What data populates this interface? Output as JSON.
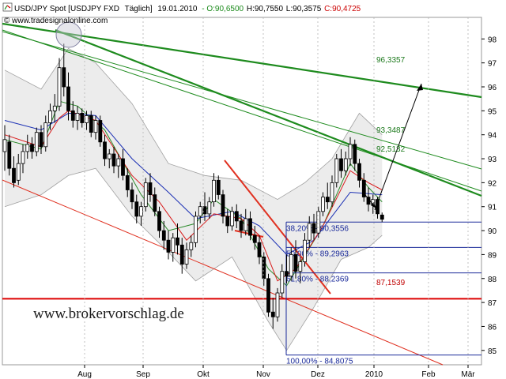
{
  "header": {
    "instrument": "USD/JPY Spot [USDJPY FXD",
    "period": "Täglich]",
    "date": "19.01.2010",
    "open": "- O:90,6500",
    "high": "H:90,7550",
    "low": "L:90,3575",
    "close": "C:90,4725",
    "source": "© www.tradesignalonline.com",
    "watermark": "www.brokervorschlag.de"
  },
  "colors": {
    "close": "#cc0000",
    "candle": "#000000",
    "ma_red": "#d81b1b",
    "ma_blue": "#1a2fb4",
    "ma_green": "#2a8a2a",
    "bands": "#a0a0a0",
    "band_fill": "#dcdcdc",
    "trend_green": "#1e8b1e",
    "channel_red": "#e03020",
    "fib": "#1a2a9a",
    "support": "#dd0000"
  },
  "chart_data": {
    "type": "candlestick",
    "x_tick_labels": [
      "Aug",
      "Sep",
      "Okt",
      "Nov",
      "Dez",
      "2010",
      "Feb",
      "Mär"
    ],
    "y_ticks": [
      85,
      86,
      87,
      88,
      89,
      90,
      91,
      92,
      93,
      94,
      95,
      96,
      97,
      98
    ],
    "ylim": [
      84.4,
      98.9
    ],
    "candles": [
      {
        "o": 93.3,
        "h": 94.4,
        "l": 92.5,
        "c": 93.8
      },
      {
        "o": 93.7,
        "h": 94.0,
        "l": 92.3,
        "c": 92.6
      },
      {
        "o": 92.6,
        "h": 93.1,
        "l": 91.8,
        "c": 92.0
      },
      {
        "o": 92.1,
        "h": 93.2,
        "l": 91.9,
        "c": 92.8
      },
      {
        "o": 92.8,
        "h": 93.6,
        "l": 92.4,
        "c": 93.3
      },
      {
        "o": 93.3,
        "h": 94.0,
        "l": 93.0,
        "c": 93.6
      },
      {
        "o": 93.6,
        "h": 93.9,
        "l": 93.0,
        "c": 93.3
      },
      {
        "o": 93.3,
        "h": 94.3,
        "l": 93.1,
        "c": 94.1
      },
      {
        "o": 94.1,
        "h": 94.4,
        "l": 93.2,
        "c": 93.5
      },
      {
        "o": 93.5,
        "h": 94.8,
        "l": 93.3,
        "c": 94.5
      },
      {
        "o": 94.5,
        "h": 95.3,
        "l": 94.2,
        "c": 95.0
      },
      {
        "o": 95.0,
        "h": 95.7,
        "l": 94.5,
        "c": 95.2
      },
      {
        "o": 95.2,
        "h": 97.2,
        "l": 95.0,
        "c": 96.8
      },
      {
        "o": 96.8,
        "h": 97.8,
        "l": 95.6,
        "c": 96.0
      },
      {
        "o": 96.0,
        "h": 96.6,
        "l": 94.6,
        "c": 95.0
      },
      {
        "o": 95.0,
        "h": 95.4,
        "l": 94.3,
        "c": 94.6
      },
      {
        "o": 94.6,
        "h": 95.2,
        "l": 94.2,
        "c": 94.9
      },
      {
        "o": 94.9,
        "h": 95.1,
        "l": 94.3,
        "c": 94.5
      },
      {
        "o": 94.5,
        "h": 95.0,
        "l": 94.2,
        "c": 94.8
      },
      {
        "o": 94.8,
        "h": 95.0,
        "l": 93.9,
        "c": 94.1
      },
      {
        "o": 94.1,
        "h": 94.8,
        "l": 93.8,
        "c": 94.6
      },
      {
        "o": 94.6,
        "h": 94.8,
        "l": 93.5,
        "c": 93.7
      },
      {
        "o": 93.7,
        "h": 94.0,
        "l": 92.7,
        "c": 93.0
      },
      {
        "o": 93.0,
        "h": 93.4,
        "l": 92.6,
        "c": 93.2
      },
      {
        "o": 93.2,
        "h": 93.5,
        "l": 92.4,
        "c": 92.7
      },
      {
        "o": 92.7,
        "h": 93.2,
        "l": 92.2,
        "c": 93.0
      },
      {
        "o": 93.0,
        "h": 93.4,
        "l": 92.1,
        "c": 92.3
      },
      {
        "o": 92.3,
        "h": 92.6,
        "l": 91.4,
        "c": 91.7
      },
      {
        "o": 91.7,
        "h": 92.0,
        "l": 90.9,
        "c": 91.2
      },
      {
        "o": 91.2,
        "h": 91.5,
        "l": 90.3,
        "c": 90.6
      },
      {
        "o": 90.6,
        "h": 91.2,
        "l": 90.2,
        "c": 91.0
      },
      {
        "o": 91.0,
        "h": 92.2,
        "l": 90.8,
        "c": 92.0
      },
      {
        "o": 92.0,
        "h": 92.4,
        "l": 91.2,
        "c": 91.5
      },
      {
        "o": 91.5,
        "h": 91.8,
        "l": 90.6,
        "c": 90.8
      },
      {
        "o": 90.8,
        "h": 91.0,
        "l": 89.7,
        "c": 90.0
      },
      {
        "o": 90.0,
        "h": 90.4,
        "l": 89.2,
        "c": 89.6
      },
      {
        "o": 89.6,
        "h": 90.0,
        "l": 88.8,
        "c": 89.1
      },
      {
        "o": 89.1,
        "h": 89.9,
        "l": 88.7,
        "c": 89.7
      },
      {
        "o": 89.7,
        "h": 90.3,
        "l": 89.0,
        "c": 89.4
      },
      {
        "o": 89.4,
        "h": 89.7,
        "l": 88.2,
        "c": 88.6
      },
      {
        "o": 88.6,
        "h": 89.5,
        "l": 88.4,
        "c": 89.2
      },
      {
        "o": 89.2,
        "h": 89.8,
        "l": 88.9,
        "c": 89.5
      },
      {
        "o": 89.5,
        "h": 90.8,
        "l": 89.3,
        "c": 90.6
      },
      {
        "o": 90.6,
        "h": 91.2,
        "l": 90.3,
        "c": 91.0
      },
      {
        "o": 91.0,
        "h": 91.6,
        "l": 90.4,
        "c": 90.7
      },
      {
        "o": 90.7,
        "h": 91.4,
        "l": 90.5,
        "c": 91.2
      },
      {
        "o": 91.2,
        "h": 92.4,
        "l": 91.0,
        "c": 92.1
      },
      {
        "o": 92.1,
        "h": 92.3,
        "l": 91.3,
        "c": 91.5
      },
      {
        "o": 91.5,
        "h": 91.7,
        "l": 90.3,
        "c": 90.6
      },
      {
        "o": 90.6,
        "h": 90.9,
        "l": 89.9,
        "c": 90.2
      },
      {
        "o": 90.2,
        "h": 91.0,
        "l": 90.0,
        "c": 90.8
      },
      {
        "o": 90.8,
        "h": 91.1,
        "l": 90.1,
        "c": 90.4
      },
      {
        "o": 90.4,
        "h": 90.7,
        "l": 89.7,
        "c": 90.0
      },
      {
        "o": 90.0,
        "h": 90.9,
        "l": 89.8,
        "c": 90.5
      },
      {
        "o": 90.5,
        "h": 90.8,
        "l": 89.6,
        "c": 89.8
      },
      {
        "o": 89.8,
        "h": 90.2,
        "l": 89.2,
        "c": 89.5
      },
      {
        "o": 89.5,
        "h": 89.8,
        "l": 88.6,
        "c": 88.9
      },
      {
        "o": 88.9,
        "h": 89.1,
        "l": 87.7,
        "c": 88.0
      },
      {
        "o": 88.0,
        "h": 88.2,
        "l": 86.4,
        "c": 86.6
      },
      {
        "o": 86.6,
        "h": 87.2,
        "l": 85.9,
        "c": 86.4
      },
      {
        "o": 86.4,
        "h": 87.6,
        "l": 86.2,
        "c": 87.4
      },
      {
        "o": 87.4,
        "h": 88.6,
        "l": 87.2,
        "c": 88.3
      },
      {
        "o": 88.3,
        "h": 89.0,
        "l": 87.8,
        "c": 88.1
      },
      {
        "o": 88.1,
        "h": 89.3,
        "l": 87.9,
        "c": 89.0
      },
      {
        "o": 89.0,
        "h": 89.6,
        "l": 88.0,
        "c": 88.3
      },
      {
        "o": 88.3,
        "h": 88.9,
        "l": 87.8,
        "c": 88.7
      },
      {
        "o": 88.7,
        "h": 89.9,
        "l": 88.5,
        "c": 89.6
      },
      {
        "o": 89.6,
        "h": 90.6,
        "l": 89.3,
        "c": 90.3
      },
      {
        "o": 90.3,
        "h": 90.7,
        "l": 89.6,
        "c": 89.9
      },
      {
        "o": 89.9,
        "h": 91.0,
        "l": 89.7,
        "c": 90.8
      },
      {
        "o": 90.8,
        "h": 91.6,
        "l": 90.6,
        "c": 91.4
      },
      {
        "o": 91.4,
        "h": 92.0,
        "l": 90.9,
        "c": 91.2
      },
      {
        "o": 91.2,
        "h": 92.3,
        "l": 91.0,
        "c": 92.0
      },
      {
        "o": 92.0,
        "h": 93.2,
        "l": 91.8,
        "c": 93.0
      },
      {
        "o": 93.0,
        "h": 93.4,
        "l": 92.2,
        "c": 92.5
      },
      {
        "o": 92.5,
        "h": 93.3,
        "l": 92.3,
        "c": 93.0
      },
      {
        "o": 93.0,
        "h": 93.9,
        "l": 92.7,
        "c": 93.6
      },
      {
        "o": 93.6,
        "h": 93.8,
        "l": 92.5,
        "c": 92.8
      },
      {
        "o": 92.8,
        "h": 93.0,
        "l": 91.8,
        "c": 92.1
      },
      {
        "o": 92.1,
        "h": 92.4,
        "l": 91.2,
        "c": 91.4
      },
      {
        "o": 91.4,
        "h": 91.8,
        "l": 90.8,
        "c": 91.1
      },
      {
        "o": 91.1,
        "h": 91.5,
        "l": 90.7,
        "c": 91.3
      },
      {
        "o": 91.3,
        "h": 91.4,
        "l": 90.5,
        "c": 90.7
      },
      {
        "o": 90.65,
        "h": 90.755,
        "l": 90.3575,
        "c": 90.4725
      }
    ],
    "ma_red": [
      [
        0,
        94.0
      ],
      [
        8,
        93.5
      ],
      [
        12,
        94.7
      ],
      [
        14,
        95.0
      ],
      [
        20,
        94.6
      ],
      [
        28,
        92.3
      ],
      [
        34,
        91.2
      ],
      [
        40,
        89.6
      ],
      [
        46,
        90.7
      ],
      [
        52,
        90.5
      ],
      [
        56,
        89.8
      ],
      [
        60,
        87.9
      ],
      [
        64,
        88.4
      ],
      [
        70,
        90.2
      ],
      [
        76,
        92.5
      ],
      [
        80,
        92.0
      ],
      [
        83,
        91.7
      ]
    ],
    "ma_blue": [
      [
        0,
        94.6
      ],
      [
        8,
        94.2
      ],
      [
        14,
        94.9
      ],
      [
        20,
        94.8
      ],
      [
        28,
        93.0
      ],
      [
        36,
        91.6
      ],
      [
        42,
        90.5
      ],
      [
        50,
        90.8
      ],
      [
        56,
        90.2
      ],
      [
        62,
        89.0
      ],
      [
        68,
        89.6
      ],
      [
        76,
        91.6
      ],
      [
        83,
        91.5
      ]
    ],
    "ma_green": [
      [
        0,
        93.8
      ],
      [
        8,
        93.4
      ],
      [
        12,
        95.4
      ],
      [
        16,
        95.2
      ],
      [
        22,
        94.2
      ],
      [
        30,
        91.5
      ],
      [
        36,
        90.0
      ],
      [
        42,
        90.3
      ],
      [
        46,
        91.3
      ],
      [
        52,
        90.5
      ],
      [
        58,
        88.4
      ],
      [
        62,
        87.7
      ],
      [
        70,
        90.2
      ],
      [
        76,
        92.8
      ],
      [
        80,
        91.8
      ],
      [
        83,
        91.2
      ]
    ],
    "band_upper": [
      [
        0,
        96.7
      ],
      [
        8,
        95.9
      ],
      [
        14,
        97.6
      ],
      [
        20,
        97.0
      ],
      [
        28,
        95.3
      ],
      [
        36,
        92.8
      ],
      [
        44,
        92.3
      ],
      [
        52,
        92.1
      ],
      [
        60,
        91.3
      ],
      [
        66,
        92.0
      ],
      [
        72,
        93.0
      ],
      [
        78,
        94.9
      ],
      [
        83,
        94.0
      ]
    ],
    "band_lower": [
      [
        0,
        91.0
      ],
      [
        8,
        91.5
      ],
      [
        14,
        92.3
      ],
      [
        20,
        92.6
      ],
      [
        28,
        90.6
      ],
      [
        36,
        89.1
      ],
      [
        42,
        87.9
      ],
      [
        50,
        88.9
      ],
      [
        58,
        86.2
      ],
      [
        62,
        85.0
      ],
      [
        68,
        86.8
      ],
      [
        74,
        88.8
      ],
      [
        80,
        89.3
      ],
      [
        83,
        89.8
      ]
    ],
    "fib_levels": [
      {
        "label": "38,20% - 90,3556",
        "value": 90.3556
      },
      {
        "label": "50,00% - 89,2963",
        "value": 89.2963
      },
      {
        "label": "61,80% - 88,2369",
        "value": 88.2369
      },
      {
        "label": "100,00% - 84,8075",
        "value": 84.8075
      }
    ],
    "support": {
      "label": "87,1539",
      "value": 87.1539
    },
    "green_line_labels": [
      "96,3357",
      "93,3487",
      "92,5132"
    ]
  }
}
